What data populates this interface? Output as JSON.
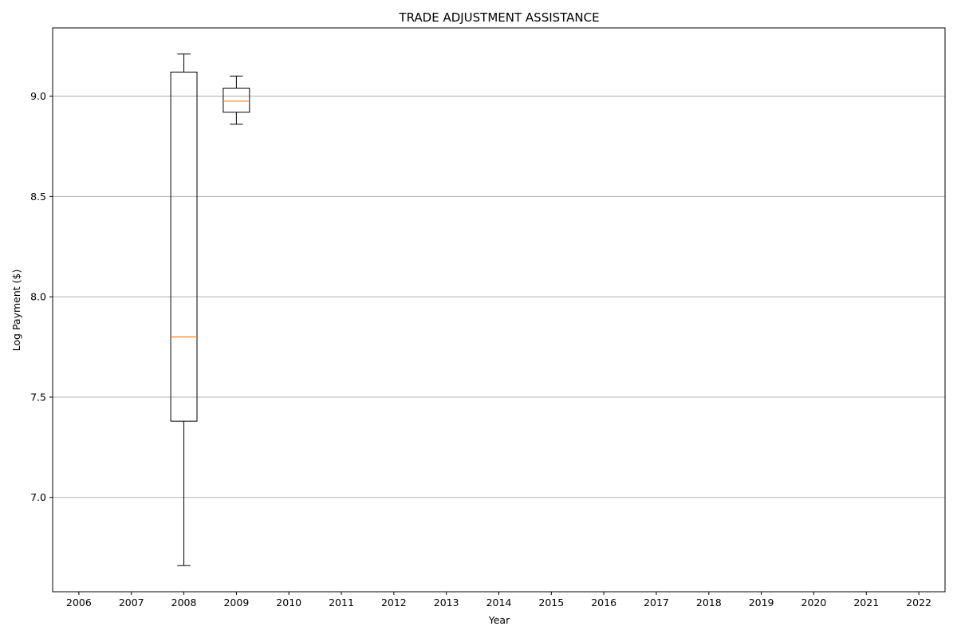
{
  "chart_data": {
    "type": "box",
    "title": "TRADE ADJUSTMENT ASSISTANCE",
    "xlabel": "Year",
    "ylabel": "Log Payment ($)",
    "categories": [
      "2006",
      "2007",
      "2008",
      "2009",
      "2010",
      "2011",
      "2012",
      "2013",
      "2014",
      "2015",
      "2016",
      "2017",
      "2018",
      "2019",
      "2020",
      "2021",
      "2022"
    ],
    "ylim": [
      6.53,
      9.34
    ],
    "yticks": [
      "7.0",
      "7.5",
      "8.0",
      "8.5",
      "9.0"
    ],
    "grid": "horizontal",
    "boxes": [
      {
        "category": "2008",
        "whisker_low": 6.66,
        "q1": 7.38,
        "median": 7.8,
        "q3": 9.12,
        "whisker_high": 9.21
      },
      {
        "category": "2009",
        "whisker_low": 8.86,
        "q1": 8.92,
        "median": 8.975,
        "q3": 9.04,
        "whisker_high": 9.1
      }
    ],
    "colors": {
      "box": "#000000",
      "median": "#ff7f0e",
      "grid": "#b0b0b0"
    }
  }
}
